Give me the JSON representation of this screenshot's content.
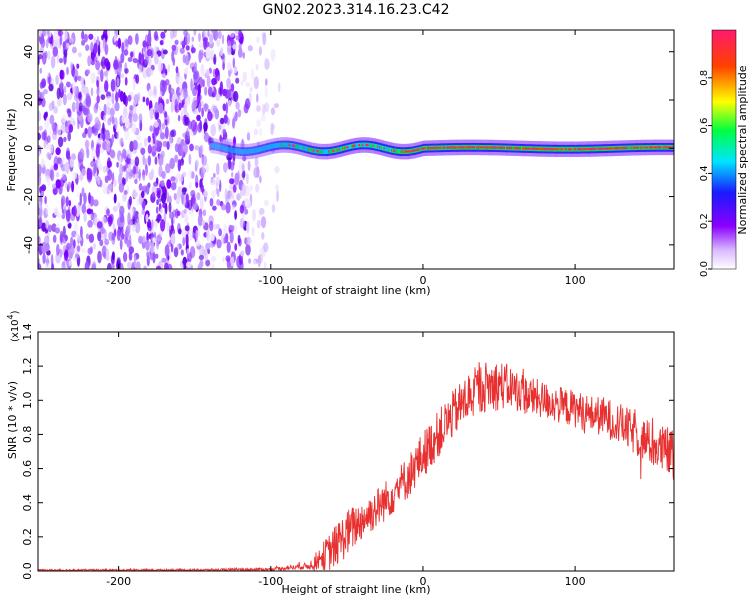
{
  "figure_title": "GN02.2023.314.16.23.C42",
  "chart_data": [
    {
      "type": "heatmap",
      "title": "",
      "xlabel": "Height of straight line (km)",
      "ylabel": "Frequency (Hz)",
      "xlim": [
        -253,
        165
      ],
      "ylim": [
        -50,
        49
      ],
      "xticks": [
        -200,
        -100,
        0,
        100
      ],
      "xtick_labels": [
        "-200",
        "-100",
        "0",
        "100"
      ],
      "yticks": [
        -40,
        -20,
        0,
        20,
        40
      ],
      "ytick_labels": [
        "-40",
        "-20",
        "0",
        "20",
        "40"
      ],
      "colorbar": {
        "label": "Normalized spectral amplitude",
        "range": [
          0,
          1
        ],
        "ticks": [
          0.0,
          0.2,
          0.4,
          0.6,
          0.8
        ],
        "tick_labels": [
          "0.0",
          "0.2",
          "0.4",
          "0.6",
          "0.8"
        ],
        "colors": [
          "#ffffff",
          "#d9b8ff",
          "#8a00ff",
          "#1a1aff",
          "#00e5ff",
          "#00ff40",
          "#ffff00",
          "#ff4000",
          "#ff1a6e"
        ]
      },
      "features": {
        "noise_region_x": [
          -253,
          -100
        ],
        "signal_line_frequency_hz": 0,
        "signal_start_x": -140
      }
    },
    {
      "type": "line",
      "title": "",
      "xlabel": "Height of straight line (km)",
      "ylabel": "SNR (10 * v/v)",
      "y_scale_label": "(x10",
      "y_scale_exponent": "4",
      "xlim": [
        -253,
        165
      ],
      "ylim": [
        0,
        1.4
      ],
      "xticks": [
        -200,
        -100,
        0,
        100
      ],
      "xtick_labels": [
        "-200",
        "-100",
        "0",
        "100"
      ],
      "yticks": [
        0.0,
        0.2,
        0.4,
        0.6,
        0.8,
        1.0,
        1.2,
        1.4
      ],
      "ytick_labels": [
        "0.0",
        "0.2",
        "0.4",
        "0.6",
        "0.8",
        "1.0",
        "1.2",
        "1.4"
      ],
      "color": "#e83030",
      "envelope": {
        "x": [
          -253,
          -150,
          -100,
          -75,
          -60,
          -50,
          -40,
          -30,
          -20,
          -10,
          0,
          10,
          20,
          30,
          40,
          50,
          60,
          70,
          80,
          90,
          100,
          110,
          120,
          130,
          140,
          150,
          165
        ],
        "y_mid": [
          0.005,
          0.006,
          0.01,
          0.03,
          0.12,
          0.22,
          0.3,
          0.37,
          0.45,
          0.55,
          0.68,
          0.8,
          0.92,
          1.02,
          1.08,
          1.09,
          1.07,
          1.02,
          1.0,
          0.97,
          0.95,
          0.92,
          0.9,
          0.86,
          0.8,
          0.74,
          0.68
        ],
        "y_amp": [
          0.005,
          0.006,
          0.008,
          0.02,
          0.12,
          0.14,
          0.12,
          0.12,
          0.12,
          0.13,
          0.14,
          0.14,
          0.14,
          0.15,
          0.15,
          0.15,
          0.12,
          0.12,
          0.11,
          0.11,
          0.11,
          0.11,
          0.12,
          0.12,
          0.13,
          0.13,
          0.16
        ]
      }
    }
  ]
}
